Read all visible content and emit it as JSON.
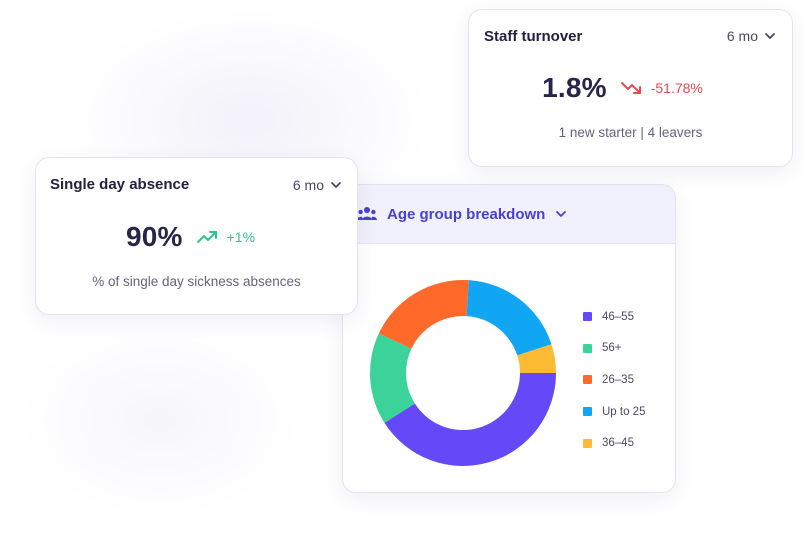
{
  "turnover": {
    "title": "Staff turnover",
    "period": "6 mo",
    "value": "1.8%",
    "delta": "-51.78%",
    "delta_color": "#e5484d",
    "trend_icon": "trending-down-icon",
    "subtext": "1 new starter | 4 leavers"
  },
  "absence": {
    "title": "Single day absence",
    "period": "6 mo",
    "value": "90%",
    "delta": "+1%",
    "delta_color": "#2fc58a",
    "trend_icon": "trending-up-icon",
    "subtext": "% of single day sickness absences"
  },
  "age": {
    "title": "Age group breakdown",
    "icon": "people-group-icon",
    "accent": "#4a3fd1"
  },
  "chart_data": {
    "type": "pie",
    "donut": true,
    "categories": [
      "46–55",
      "56+",
      "26–35",
      "Up to 25",
      "36–45"
    ],
    "values": [
      41,
      16,
      19,
      19,
      5
    ],
    "colors": [
      "#6548f7",
      "#3cd39a",
      "#ff6a2b",
      "#11a6f4",
      "#fbbb33"
    ],
    "legend_position": "right"
  }
}
